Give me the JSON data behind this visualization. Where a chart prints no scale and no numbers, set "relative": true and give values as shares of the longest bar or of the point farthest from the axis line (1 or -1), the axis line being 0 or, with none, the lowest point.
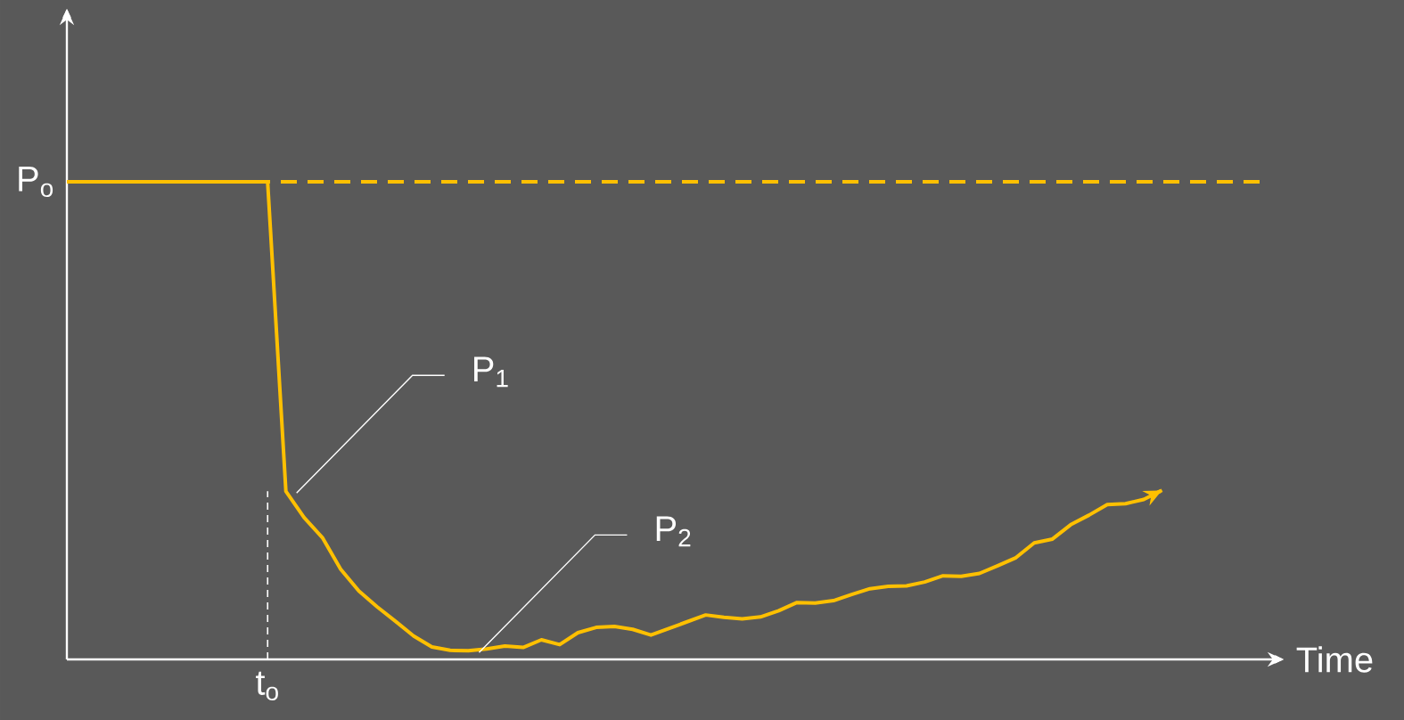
{
  "chart_data": {
    "type": "line",
    "relative": true,
    "xlabel": "Time",
    "color": "#ffc000",
    "line_style": "solid",
    "categories": [
      null,
      null,
      null,
      null,
      null,
      null,
      null,
      null,
      null,
      null,
      null,
      null,
      null,
      null,
      null,
      null,
      null,
      null,
      null,
      null,
      null,
      null,
      null,
      null,
      null,
      null,
      null,
      null,
      null,
      null,
      null,
      null,
      null,
      null,
      null,
      null,
      null,
      null,
      null,
      null,
      null,
      null,
      null,
      null,
      null,
      null,
      null,
      null,
      null,
      null,
      null,
      null,
      null,
      null,
      null,
      null,
      null,
      null,
      null,
      null,
      null
    ],
    "values": [
      1,
      1,
      1,
      1,
      1,
      1,
      1,
      1,
      1,
      1,
      1,
      1,
      0.352,
      0.297,
      0.255,
      0.189,
      0.143,
      0.11,
      0.08,
      0.049,
      0.026,
      0.019,
      0.018,
      0.022,
      0.028,
      0.025,
      0.041,
      0.031,
      0.056,
      0.067,
      0.069,
      0.063,
      0.051,
      0.065,
      0.079,
      0.093,
      0.088,
      0.085,
      0.089,
      0.102,
      0.119,
      0.118,
      0.123,
      0.136,
      0.148,
      0.153,
      0.154,
      0.162,
      0.175,
      0.174,
      0.18,
      0.196,
      0.213,
      0.244,
      0.252,
      0.282,
      0.302,
      0.324,
      0.326,
      0.335,
      0.354
    ],
    "ref_lines": [
      {
        "axis": "y",
        "value": 1,
        "label": "P$_{o}$",
        "color": "#ffc000",
        "line_style": "dashed"
      }
    ],
    "annotations": [
      "P$_{1}$",
      "P$_{2}$",
      "t$_{o}$"
    ]
  }
}
